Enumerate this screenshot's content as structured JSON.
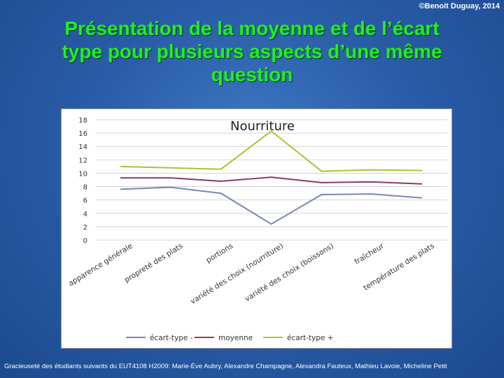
{
  "header": {
    "copyright": "©Benoit Duguay, 2014",
    "title_lines": [
      "Présentation de la moyenne et de l’écart",
      "type pour plusieurs aspects d’une même",
      "question"
    ]
  },
  "footer": {
    "credits": "Gracieuseté des étudiants suivants du EUT4108 H2009: Marie-Ève Aubry, Alexandre Champagne, Alexandra Fauteux, Mathieu Lavoie, Micheline Petit"
  },
  "chart_data": {
    "type": "line",
    "title": "Nourriture",
    "categories": [
      "apparence générale",
      "propreté des plats",
      "portions",
      "variété des choix (nourriture)",
      "variété des choix (boissons)",
      "fraîcheur",
      "température des plats"
    ],
    "series": [
      {
        "name": "écart-type -",
        "color": "#7a86b4",
        "values": [
          7.6,
          7.9,
          7.0,
          2.4,
          6.8,
          6.9,
          6.3
        ]
      },
      {
        "name": "moyenne",
        "color": "#8b3a6f",
        "values": [
          9.3,
          9.3,
          8.8,
          9.4,
          8.6,
          8.7,
          8.4
        ]
      },
      {
        "name": "écart-type +",
        "color": "#a8c43a",
        "values": [
          11.0,
          10.8,
          10.6,
          16.3,
          10.3,
          10.5,
          10.4
        ]
      }
    ],
    "ylim": [
      0,
      18
    ],
    "yticks": [
      0,
      2,
      4,
      6,
      8,
      10,
      12,
      14,
      16,
      18
    ],
    "grid": true,
    "legend": "bottom"
  }
}
